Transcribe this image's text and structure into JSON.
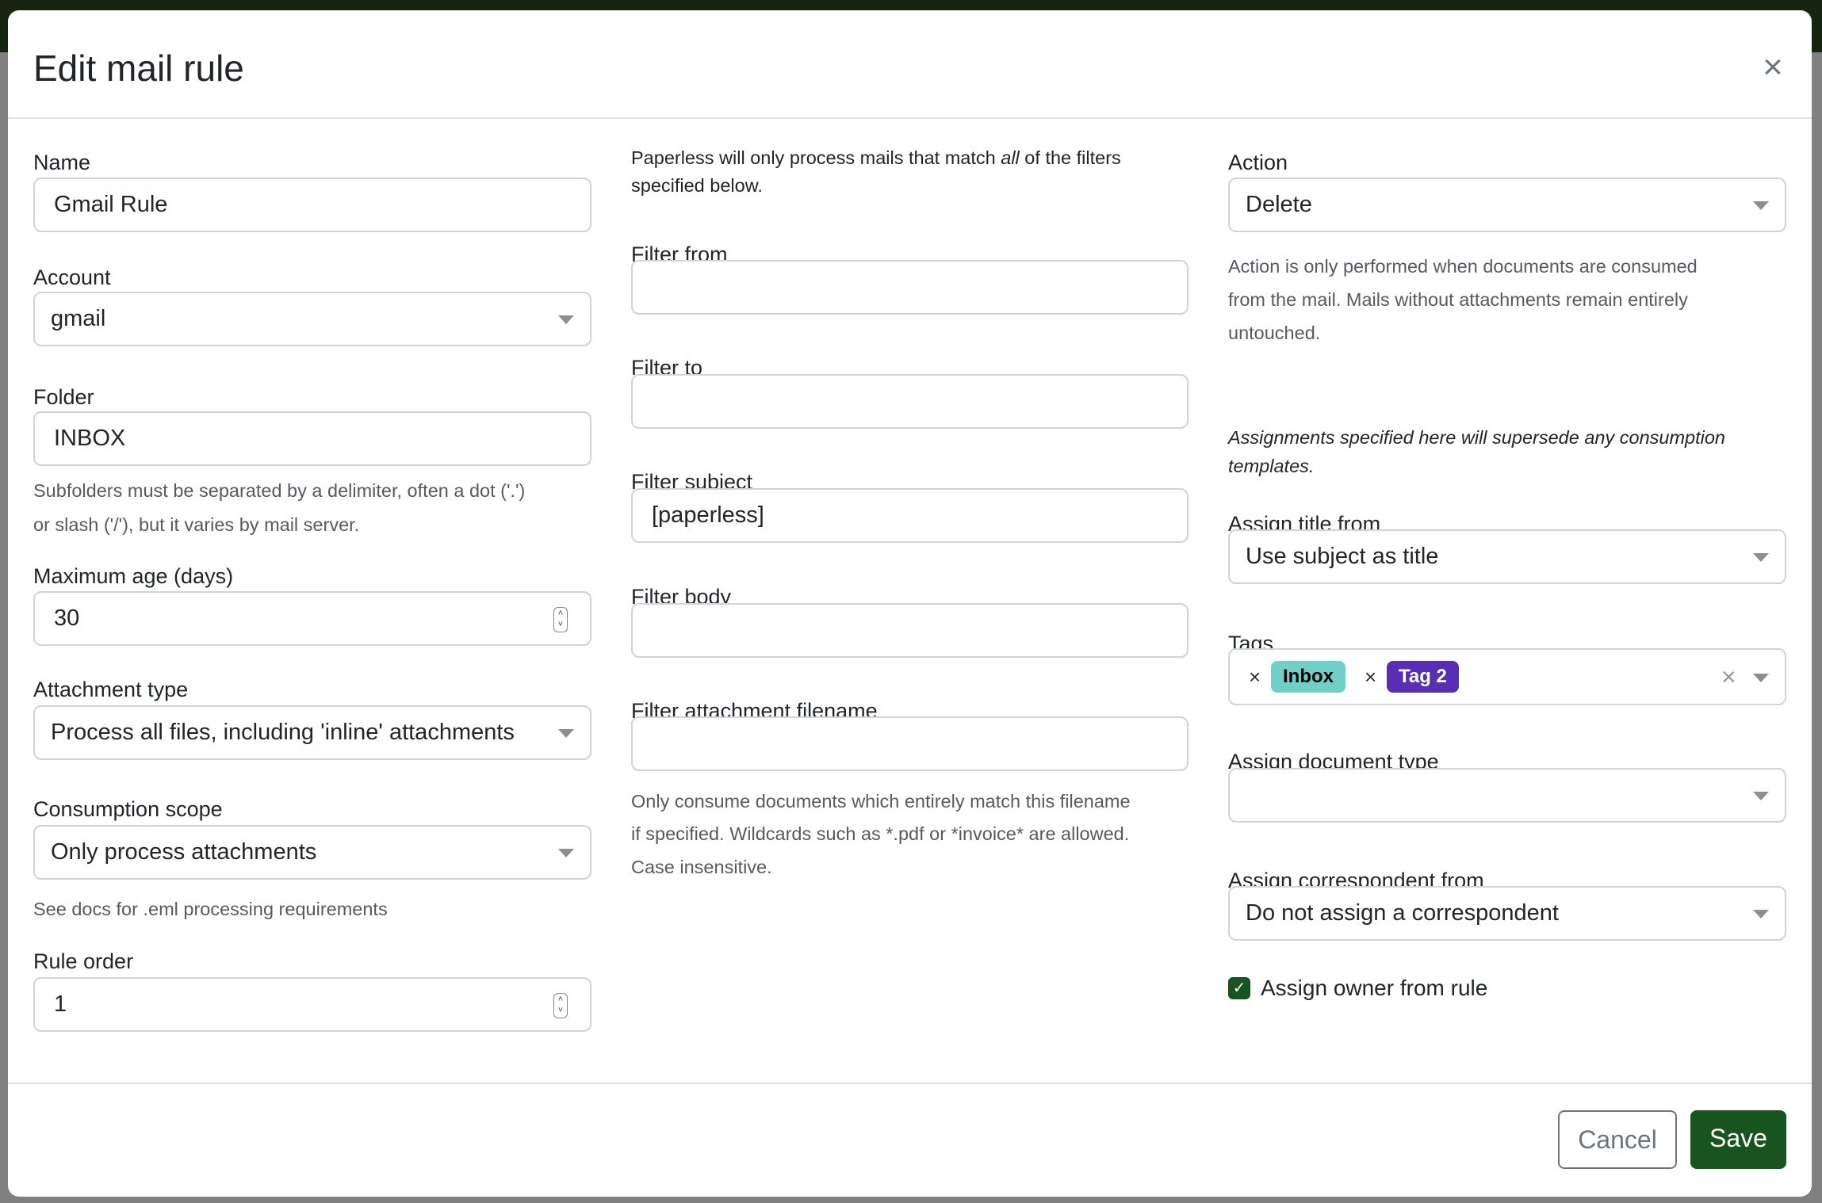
{
  "title": "Edit mail rule",
  "colors": {
    "primary": "#17541f",
    "tag_inbox": "#70d0c8",
    "tag_2": "#5a2db5"
  },
  "left": {
    "name_label": "Name",
    "name_value": "Gmail Rule",
    "account_label": "Account",
    "account_value": "gmail",
    "folder_label": "Folder",
    "folder_value": "INBOX",
    "folder_help_1": "Subfolders must be separated by a delimiter, often a dot ('.')",
    "folder_help_2": "or slash ('/'), but it varies by mail server.",
    "max_age_label": "Maximum age (days)",
    "max_age_value": "30",
    "attachment_type_label": "Attachment type",
    "attachment_type_value": "Process all files, including 'inline' attachments",
    "scope_label": "Consumption scope",
    "scope_value": "Only process attachments",
    "scope_help": "See docs for .eml processing requirements",
    "rule_order_label": "Rule order",
    "rule_order_value": "1"
  },
  "middle": {
    "intro_1a": "Paperless will only process mails that match ",
    "intro_1b": "all",
    "intro_1c": " of the filters",
    "intro_2": "specified below.",
    "filter_from_label": "Filter from",
    "filter_from_value": "",
    "filter_to_label": "Filter to",
    "filter_to_value": "",
    "filter_subject_label": "Filter subject",
    "filter_subject_value": "[paperless]",
    "filter_body_label": "Filter body",
    "filter_body_value": "",
    "filter_attachment_label": "Filter attachment filename",
    "filter_attachment_value": "",
    "help_1": "Only consume documents which entirely match this filename",
    "help_2": "if specified. Wildcards such as *.pdf or *invoice* are allowed.",
    "help_3": "Case insensitive."
  },
  "right": {
    "action_label": "Action",
    "action_value": "Delete",
    "action_help_1": "Action is only performed when documents are consumed",
    "action_help_2": "from the mail. Mails without attachments remain entirely",
    "action_help_3": "untouched.",
    "assign_note_1": "Assignments specified here will supersede any consumption",
    "assign_note_2": "templates.",
    "title_from_label": "Assign title from",
    "title_from_value": "Use subject as title",
    "tags_label": "Tags",
    "tags": [
      {
        "label": "Inbox"
      },
      {
        "label": "Tag 2"
      }
    ],
    "doc_type_label": "Assign document type",
    "doc_type_value": "",
    "correspondent_label": "Assign correspondent from",
    "correspondent_value": "Do not assign a correspondent",
    "owner_label": "Assign owner from rule",
    "owner_checked": true
  },
  "footer": {
    "cancel": "Cancel",
    "save": "Save"
  }
}
